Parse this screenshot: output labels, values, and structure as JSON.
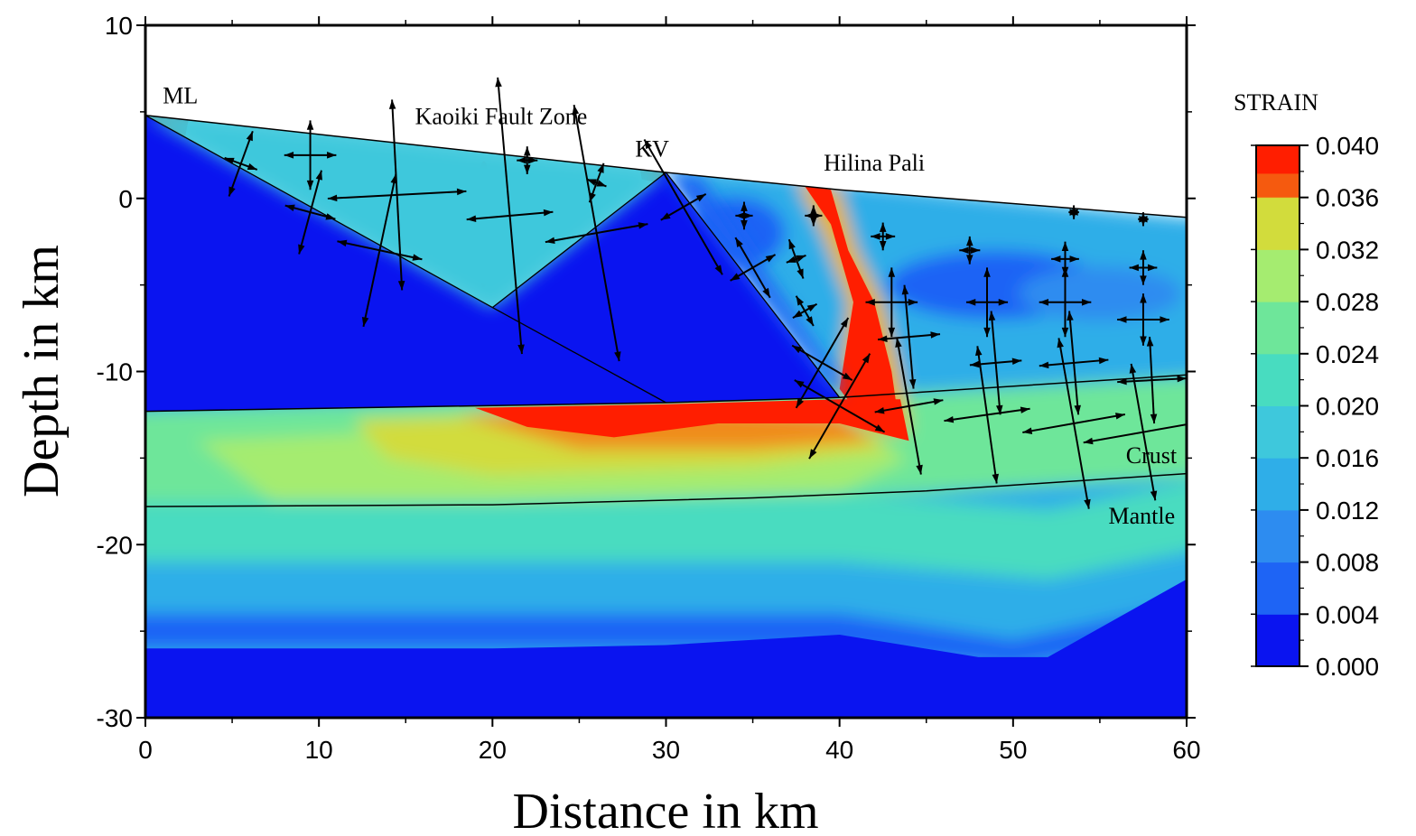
{
  "chart_data": {
    "type": "heatmap",
    "xlabel": "Distance in km",
    "ylabel": "Depth in km",
    "xlim": [
      0,
      60
    ],
    "ylim": [
      -30,
      10
    ],
    "xticks": [
      0,
      10,
      20,
      30,
      40,
      50,
      60
    ],
    "yticks": [
      10,
      0,
      -10,
      -20,
      -30
    ],
    "colorbar": {
      "title": "STRAIN",
      "ticks": [
        "0.040",
        "0.036",
        "0.032",
        "0.028",
        "0.024",
        "0.020",
        "0.016",
        "0.012",
        "0.008",
        "0.004",
        "0.000"
      ],
      "range": [
        0,
        0.04
      ],
      "colors": [
        "#0a14f0",
        "#1e64f5",
        "#2d8cf0",
        "#2faee8",
        "#3ec8dc",
        "#48dcc0",
        "#6ee69a",
        "#a5ec70",
        "#d2dc3c",
        "#e6b42c",
        "#f08c1e",
        "#f55a0f",
        "#ff1e00"
      ]
    },
    "annotations": [
      {
        "text": "ML",
        "x": 1.0,
        "y": 5.5
      },
      {
        "text": "Kaoiki Fault Zone",
        "x": 20.5,
        "y": 4.3
      },
      {
        "text": "KV",
        "x": 29.2,
        "y": 2.4
      },
      {
        "text": "Hilina Pali",
        "x": 42,
        "y": 1.6
      },
      {
        "text": "Crust",
        "x": 56.5,
        "y": -15.3
      },
      {
        "text": "Mantle",
        "x": 55.5,
        "y": -18.8
      }
    ],
    "topography": [
      [
        0,
        4.8
      ],
      [
        30,
        1.5
      ],
      [
        40,
        0.5
      ],
      [
        60,
        -1.1
      ]
    ],
    "moho": [
      [
        0,
        -12.3
      ],
      [
        30,
        -11.8
      ],
      [
        40,
        -11.5
      ],
      [
        60,
        -10.2
      ]
    ],
    "crust_mantle_boundary": [
      [
        0,
        -17.8
      ],
      [
        20,
        -17.7
      ],
      [
        35,
        -17.3
      ],
      [
        45,
        -16.9
      ],
      [
        60,
        -15.9
      ]
    ],
    "deep_boundary": [
      [
        0,
        -26
      ],
      [
        20,
        -26
      ],
      [
        30,
        -25.8
      ],
      [
        40,
        -25.2
      ],
      [
        48,
        -26.5
      ],
      [
        52,
        -26.5
      ],
      [
        60,
        -22
      ]
    ],
    "faults": [
      [
        [
          0,
          4.8
        ],
        [
          20,
          -6.3
        ]
      ],
      [
        [
          20,
          -6.3
        ],
        [
          30,
          1.5
        ]
      ],
      [
        [
          20,
          -6.3
        ],
        [
          30,
          -11.8
        ]
      ],
      [
        [
          30,
          1.5
        ],
        [
          40,
          -11.5
        ]
      ]
    ],
    "strain_axes": [
      {
        "x": 5.5,
        "y": 2.0,
        "a": 2.0,
        "b": 1.0,
        "rot": -20
      },
      {
        "x": 9.5,
        "y": 2.5,
        "a": 2.0,
        "b": 1.5,
        "rot": 0
      },
      {
        "x": 14.5,
        "y": 0.2,
        "a": 5.5,
        "b": 4.0,
        "rot": 3
      },
      {
        "x": 9.5,
        "y": -0.8,
        "a": 2.5,
        "b": 1.5,
        "rot": -15
      },
      {
        "x": 13.5,
        "y": -3.0,
        "a": 4.5,
        "b": 2.5,
        "rot": -12
      },
      {
        "x": 21.0,
        "y": -1.0,
        "a": 8.0,
        "b": 2.5,
        "rot": 5
      },
      {
        "x": 22.0,
        "y": 2.2,
        "a": 0.8,
        "b": 0.6,
        "rot": 0
      },
      {
        "x": 26.0,
        "y": -2.0,
        "a": 7.5,
        "b": 3.0,
        "rot": 10
      },
      {
        "x": 26.0,
        "y": 0.9,
        "a": 1.2,
        "b": 0.6,
        "rot": -20
      },
      {
        "x": 31.0,
        "y": -0.5,
        "a": 4.5,
        "b": 1.5,
        "rot": 30
      },
      {
        "x": 34.5,
        "y": -1.0,
        "a": 0.8,
        "b": 0.5,
        "rot": 0
      },
      {
        "x": 35.0,
        "y": -4.0,
        "a": 2.0,
        "b": 1.5,
        "rot": 30
      },
      {
        "x": 38.5,
        "y": -1.0,
        "a": 0.6,
        "b": 0.5,
        "rot": 0
      },
      {
        "x": 37.5,
        "y": -3.5,
        "a": 1.2,
        "b": 0.6,
        "rot": 20
      },
      {
        "x": 38.0,
        "y": -6.5,
        "a": 1.0,
        "b": 0.8,
        "rot": 30
      },
      {
        "x": 39.0,
        "y": -9.5,
        "a": 3.0,
        "b": 2.0,
        "rot": -30
      },
      {
        "x": 40.0,
        "y": -12.0,
        "a": 3.5,
        "b": 3.0,
        "rot": -30
      },
      {
        "x": 42.5,
        "y": -2.2,
        "a": 0.8,
        "b": 0.7,
        "rot": 0
      },
      {
        "x": 43.0,
        "y": -6.0,
        "a": 2.0,
        "b": 1.5,
        "rot": 0
      },
      {
        "x": 44.0,
        "y": -8.0,
        "a": 3.0,
        "b": 1.8,
        "rot": 5
      },
      {
        "x": 44.0,
        "y": -12.0,
        "a": 4.0,
        "b": 2.0,
        "rot": 10
      },
      {
        "x": 47.5,
        "y": -3.0,
        "a": 0.8,
        "b": 0.6,
        "rot": 0
      },
      {
        "x": 48.5,
        "y": -6.0,
        "a": 2.0,
        "b": 1.2,
        "rot": 0
      },
      {
        "x": 49.0,
        "y": -9.5,
        "a": 3.0,
        "b": 1.5,
        "rot": 5
      },
      {
        "x": 48.5,
        "y": -12.5,
        "a": 4.0,
        "b": 2.5,
        "rot": 8
      },
      {
        "x": 53.0,
        "y": -3.5,
        "a": 1.0,
        "b": 0.8,
        "rot": 0
      },
      {
        "x": 53.0,
        "y": -6.0,
        "a": 2.0,
        "b": 1.5,
        "rot": 0
      },
      {
        "x": 53.5,
        "y": -9.5,
        "a": 3.0,
        "b": 2.0,
        "rot": 5
      },
      {
        "x": 53.5,
        "y": -13.0,
        "a": 5.0,
        "b": 3.0,
        "rot": 10
      },
      {
        "x": 57.5,
        "y": -4.0,
        "a": 1.0,
        "b": 0.8,
        "rot": 0
      },
      {
        "x": 57.5,
        "y": -7.0,
        "a": 1.5,
        "b": 1.5,
        "rot": 0
      },
      {
        "x": 58.0,
        "y": -10.5,
        "a": 2.5,
        "b": 2.0,
        "rot": 3
      },
      {
        "x": 57.5,
        "y": -13.5,
        "a": 4.0,
        "b": 3.5,
        "rot": 10
      },
      {
        "x": 53.5,
        "y": -0.8,
        "a": 0.4,
        "b": 0.3,
        "rot": 0
      },
      {
        "x": 57.5,
        "y": -1.2,
        "a": 0.4,
        "b": 0.3,
        "rot": 0
      }
    ]
  }
}
